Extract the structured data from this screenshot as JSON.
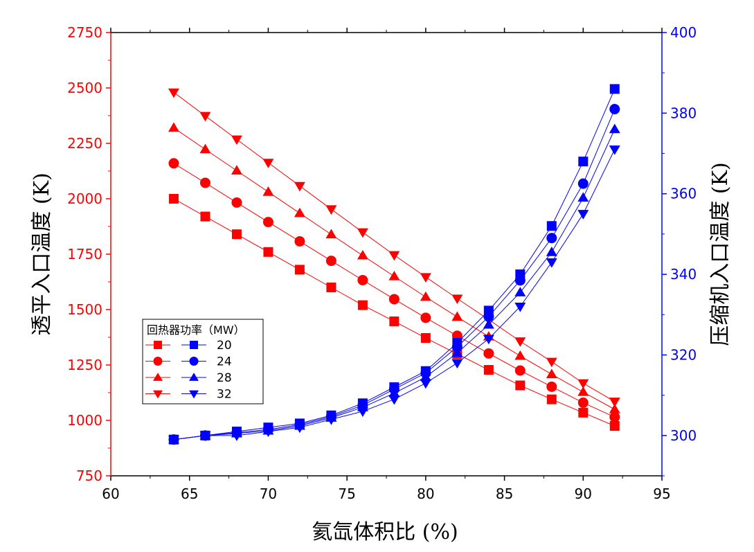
{
  "chart_data": {
    "type": "line",
    "xlabel": "氦氙体积比 (%)",
    "ylabel_left": "透平入口温度 (K)",
    "ylabel_right": "压缩机入口温度 (K)",
    "xlim": [
      60,
      95
    ],
    "ylim_left": [
      750,
      2750
    ],
    "ylim_right": [
      290,
      400
    ],
    "xticks": [
      60,
      65,
      70,
      75,
      80,
      85,
      90,
      95
    ],
    "yticks_left": [
      750,
      1000,
      1250,
      1500,
      1750,
      2000,
      2250,
      2500,
      2750
    ],
    "yticks_right": [
      300,
      320,
      340,
      360,
      380,
      400
    ],
    "x": [
      64,
      66,
      68,
      70,
      72,
      74,
      76,
      78,
      80,
      82,
      84,
      86,
      88,
      90,
      92
    ],
    "legend": {
      "title": "回热器功率（MW）",
      "position": "lower-left",
      "entries": [
        "20",
        "24",
        "28",
        "32"
      ]
    },
    "colors": {
      "left": "#ff0000",
      "right": "#0000ff"
    },
    "series_left": [
      {
        "name": "20",
        "marker": "square",
        "values": [
          2000,
          1920,
          1840,
          1760,
          1680,
          1600,
          1520,
          1447,
          1372,
          1300,
          1228,
          1158,
          1095,
          1035,
          975
        ]
      },
      {
        "name": "24",
        "marker": "circle",
        "values": [
          2160,
          2072,
          1983,
          1895,
          1808,
          1720,
          1633,
          1547,
          1463,
          1382,
          1302,
          1225,
          1152,
          1080,
          1015
        ]
      },
      {
        "name": "28",
        "marker": "triangle",
        "values": [
          2320,
          2223,
          2127,
          2031,
          1935,
          1839,
          1744,
          1650,
          1557,
          1467,
          1378,
          1291,
          1208,
          1128,
          1050
        ]
      },
      {
        "name": "32",
        "marker": "triangle-down",
        "values": [
          2480,
          2374,
          2268,
          2163,
          2058,
          1953,
          1849,
          1746,
          1647,
          1550,
          1455,
          1357,
          1265,
          1168,
          1085
        ]
      }
    ],
    "series_right": [
      {
        "name": "20",
        "marker": "square",
        "values": [
          299,
          300,
          301,
          302,
          303,
          305,
          308,
          312,
          316,
          323,
          331,
          340,
          352,
          368,
          386
        ]
      },
      {
        "name": "24",
        "marker": "circle",
        "values": [
          299,
          300,
          300.7,
          301.5,
          302.7,
          304.7,
          307.5,
          311.5,
          315.5,
          322,
          329.5,
          338.5,
          349,
          362.5,
          381
        ]
      },
      {
        "name": "28",
        "marker": "triangle",
        "values": [
          299,
          300,
          300.5,
          301.2,
          302.4,
          304.4,
          307,
          310.5,
          314.5,
          320.5,
          327.5,
          335.5,
          345.5,
          359,
          376
        ]
      },
      {
        "name": "32",
        "marker": "triangle-down",
        "values": [
          299,
          300,
          300,
          301,
          302,
          304,
          306,
          309,
          313,
          318,
          324,
          332,
          343,
          355,
          371
        ]
      }
    ]
  }
}
